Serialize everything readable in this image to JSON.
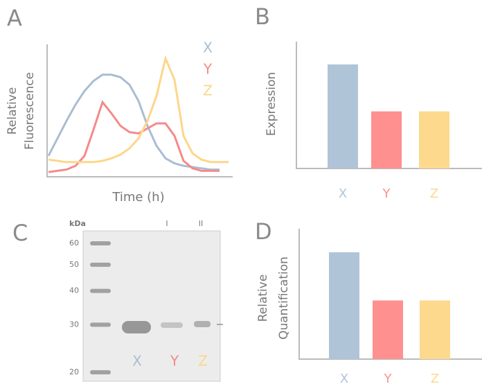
{
  "chart_data": [
    {
      "type": "line",
      "label": "A",
      "xlabel": "Time (h)",
      "ylabel": [
        "Relative",
        "Fluorescence"
      ],
      "x": [
        0,
        0.5,
        1,
        1.5,
        2,
        2.5,
        3,
        3.5,
        4,
        4.5,
        5,
        5.5,
        6,
        6.5,
        7,
        7.5,
        8,
        8.5,
        9,
        9.5,
        10
      ],
      "xlim": [
        0,
        10
      ],
      "ylim": [
        0,
        100
      ],
      "series": [
        {
          "name": "X",
          "color": "#a9bdd3",
          "values": [
            14,
            28,
            42,
            55,
            66,
            74,
            79,
            79,
            77,
            71,
            58,
            38,
            22,
            12,
            8,
            6,
            5,
            4,
            3,
            3,
            null
          ]
        },
        {
          "name": "Y",
          "color": "#f48a8a",
          "values": [
            1,
            2,
            3,
            6,
            14,
            35,
            57,
            48,
            38,
            33,
            32,
            36,
            40,
            40,
            30,
            10,
            4,
            2,
            2,
            2,
            null
          ]
        },
        {
          "name": "Z",
          "color": "#fdd68a",
          "values": [
            11,
            10,
            9,
            9,
            9,
            9,
            10,
            12,
            15,
            20,
            28,
            42,
            62,
            92,
            75,
            30,
            16,
            11,
            9,
            9,
            9
          ]
        }
      ]
    },
    {
      "type": "bar",
      "label": "B",
      "ylabel": [
        "Expression"
      ],
      "categories": [
        "X",
        "Y",
        "Z"
      ],
      "colors": [
        "#b0c4d8",
        "#fe9090",
        "#fdd98e"
      ],
      "values": [
        82,
        45,
        45
      ],
      "ylim": [
        0,
        100
      ]
    },
    {
      "type": "gel",
      "label": "C",
      "unit": "kDa",
      "ladder": [
        60,
        50,
        40,
        30,
        20
      ],
      "lanes": [
        "I",
        "II"
      ],
      "categories": [
        "X",
        "Y",
        "Z"
      ],
      "colors": [
        "#a9bdd3",
        "#f48a8a",
        "#fdd68a"
      ]
    },
    {
      "type": "bar",
      "label": "D",
      "ylabel": [
        "Relative",
        "Quantification"
      ],
      "categories": [
        "X",
        "Y",
        "Z"
      ],
      "colors": [
        "#b0c4d8",
        "#fe9090",
        "#fdd98e"
      ],
      "values": [
        82,
        45,
        45
      ],
      "ylim": [
        0,
        100
      ]
    }
  ]
}
